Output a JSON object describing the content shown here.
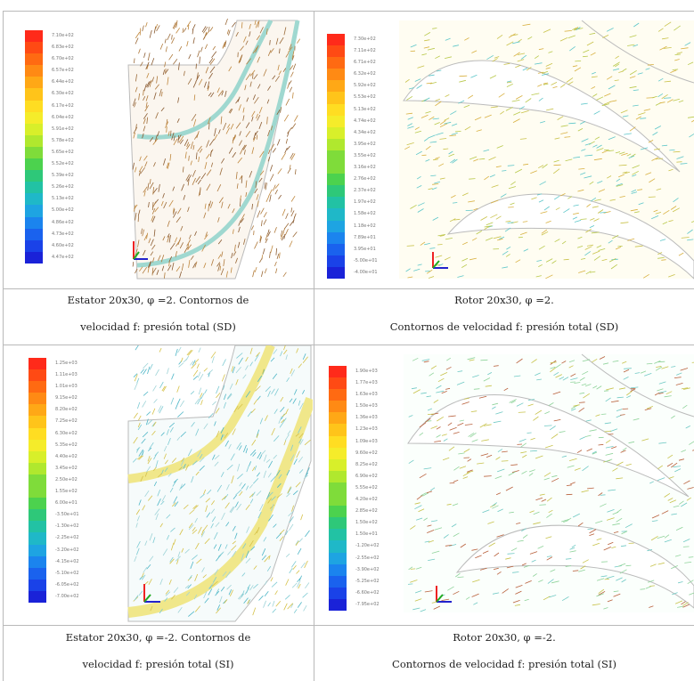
{
  "panels": [
    {
      "caption_lines": [
        "Estator 20x30, φ =2. Contornos de",
        "velocidad f: presión total (SD)"
      ],
      "legend": [
        "7.10e+02",
        "6.83e+02",
        "6.70e+02",
        "6.57e+02",
        "6.44e+02",
        "6.30e+02",
        "6.17e+02",
        "6.04e+02",
        "5.91e+02",
        "5.78e+02",
        "5.65e+02",
        "5.52e+02",
        "5.39e+02",
        "5.26e+02",
        "5.13e+02",
        "5.00e+02",
        "4.86e+02",
        "4.73e+02",
        "4.60e+02",
        "4.47e+02"
      ]
    },
    {
      "caption_lines": [
        "Rotor 20x30, φ =2.",
        "Contornos de velocidad f: presión total (SD)"
      ],
      "legend": [
        "7.30e+02",
        "7.11e+02",
        "6.71e+02",
        "6.32e+02",
        "5.92e+02",
        "5.53e+02",
        "5.13e+02",
        "4.74e+02",
        "4.34e+02",
        "3.95e+02",
        "3.55e+02",
        "3.16e+02",
        "2.76e+02",
        "2.37e+02",
        "1.97e+02",
        "1.58e+02",
        "1.18e+02",
        "7.89e+01",
        "3.95e+01",
        "-5.00e+01",
        "-4.00e+01"
      ]
    },
    {
      "caption_lines": [
        "Estator 20x30, φ =-2. Contornos de",
        "velocidad f: presión total (SI)"
      ],
      "legend": [
        "1.25e+03",
        "1.11e+03",
        "1.01e+03",
        "9.15e+02",
        "8.20e+02",
        "7.25e+02",
        "6.30e+02",
        "5.35e+02",
        "4.40e+02",
        "3.45e+02",
        "2.50e+02",
        "1.55e+02",
        "6.00e+01",
        "-3.50e+01",
        "-1.30e+02",
        "-2.25e+02",
        "-3.20e+02",
        "-4.15e+02",
        "-5.10e+02",
        "-6.05e+02",
        "-7.00e+02"
      ]
    },
    {
      "caption_lines": [
        "Rotor 20x30, φ =-2.",
        "Contornos de velocidad f: presión total (SI)"
      ],
      "legend": [
        "1.90e+03",
        "1.77e+03",
        "1.63e+03",
        "1.50e+03",
        "1.36e+03",
        "1.23e+03",
        "1.09e+03",
        "9.60e+02",
        "8.25e+02",
        "6.90e+02",
        "5.55e+02",
        "4.20e+02",
        "2.85e+02",
        "1.50e+02",
        "1.50e+01",
        "-1.20e+02",
        "-2.55e+02",
        "-3.90e+02",
        "-5.25e+02",
        "-6.60e+02",
        "-7.95e+02"
      ]
    }
  ],
  "legend_colors": [
    "#ff2a1a",
    "#ff4a14",
    "#ff6a12",
    "#ff8a14",
    "#ffa816",
    "#ffc41a",
    "#ffdd22",
    "#f5ec2a",
    "#d8ef2a",
    "#b0e82e",
    "#7fdc3a",
    "#4cd24e",
    "#2ec879",
    "#22c2a4",
    "#1fb8c8",
    "#1ea4e2",
    "#1b84ee",
    "#1a62ee",
    "#1a42e8",
    "#1a22d8"
  ]
}
